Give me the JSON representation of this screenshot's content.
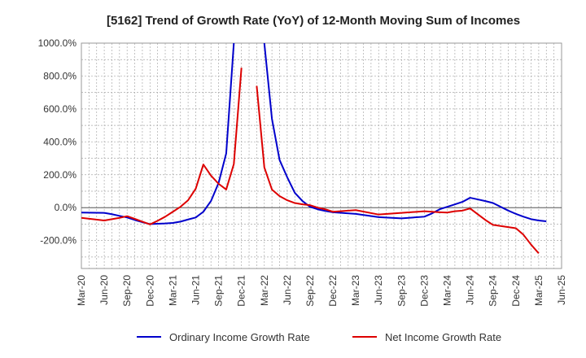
{
  "chart_data": {
    "type": "line",
    "title": "[5162]  Trend of Growth Rate (YoY) of 12-Month Moving Sum of Incomes",
    "xlabel": "",
    "ylabel": "",
    "ylim": [
      -370,
      1000
    ],
    "yticks": [
      1000,
      800,
      600,
      400,
      200,
      0,
      -200
    ],
    "ytick_labels": [
      "1000.0%",
      "800.0%",
      "600.0%",
      "400.0%",
      "200.0%",
      "0.0%",
      "-200.0%"
    ],
    "x_start": "2020-03",
    "x_end": "2025-06",
    "xticks": [
      "2020-03",
      "2020-06",
      "2020-09",
      "2020-12",
      "2021-03",
      "2021-06",
      "2021-09",
      "2021-12",
      "2022-03",
      "2022-06",
      "2022-09",
      "2022-12",
      "2023-03",
      "2023-06",
      "2023-09",
      "2023-12",
      "2024-03",
      "2024-06",
      "2024-09",
      "2024-12",
      "2025-03",
      "2025-06"
    ],
    "xtick_labels": [
      "Mar-20",
      "Jun-20",
      "Sep-20",
      "Dec-20",
      "Mar-21",
      "Jun-21",
      "Sep-21",
      "Dec-21",
      "Mar-22",
      "Jun-22",
      "Sep-22",
      "Dec-22",
      "Mar-23",
      "Jun-23",
      "Sep-23",
      "Dec-23",
      "Mar-24",
      "Jun-24",
      "Sep-24",
      "Dec-24",
      "Mar-25",
      "Jun-25"
    ],
    "grid": true,
    "legend_position": "bottom",
    "series": [
      {
        "name": "Ordinary Income Growth Rate",
        "color": "#0000cc",
        "points": [
          [
            "2020-03",
            -30
          ],
          [
            "2020-06",
            -32
          ],
          [
            "2020-07",
            -40
          ],
          [
            "2020-08",
            -50
          ],
          [
            "2020-09",
            -60
          ],
          [
            "2020-10",
            -75
          ],
          [
            "2020-11",
            -88
          ],
          [
            "2020-12",
            -100
          ],
          [
            "2021-01",
            -98
          ],
          [
            "2021-02",
            -96
          ],
          [
            "2021-03",
            -93
          ],
          [
            "2021-04",
            -85
          ],
          [
            "2021-05",
            -72
          ],
          [
            "2021-06",
            -60
          ],
          [
            "2021-07",
            -25
          ],
          [
            "2021-08",
            40
          ],
          [
            "2021-09",
            150
          ],
          [
            "2021-10",
            330
          ],
          [
            "2021-11",
            1000
          ],
          [
            "2021-12",
            null
          ],
          [
            "2022-01",
            null
          ],
          [
            "2022-02",
            null
          ],
          [
            "2022-03",
            1000
          ],
          [
            "2022-04",
            540
          ],
          [
            "2022-05",
            290
          ],
          [
            "2022-06",
            185
          ],
          [
            "2022-07",
            90
          ],
          [
            "2022-08",
            40
          ],
          [
            "2022-09",
            5
          ],
          [
            "2022-10",
            -10
          ],
          [
            "2022-11",
            -20
          ],
          [
            "2022-12",
            -28
          ],
          [
            "2023-03",
            -38
          ],
          [
            "2023-06",
            -58
          ],
          [
            "2023-09",
            -65
          ],
          [
            "2023-12",
            -55
          ],
          [
            "2024-01",
            -35
          ],
          [
            "2024-02",
            -10
          ],
          [
            "2024-03",
            5
          ],
          [
            "2024-04",
            20
          ],
          [
            "2024-05",
            35
          ],
          [
            "2024-06",
            60
          ],
          [
            "2024-07",
            50
          ],
          [
            "2024-08",
            40
          ],
          [
            "2024-09",
            28
          ],
          [
            "2024-10",
            5
          ],
          [
            "2024-11",
            -18
          ],
          [
            "2024-12",
            -38
          ],
          [
            "2025-01",
            -55
          ],
          [
            "2025-02",
            -70
          ],
          [
            "2025-03",
            -78
          ],
          [
            "2025-04",
            -83
          ]
        ]
      },
      {
        "name": "Net Income Growth Rate",
        "color": "#dd0000",
        "points": [
          [
            "2020-03",
            -62
          ],
          [
            "2020-06",
            -78
          ],
          [
            "2020-07",
            -70
          ],
          [
            "2020-08",
            -62
          ],
          [
            "2020-09",
            -52
          ],
          [
            "2020-10",
            -68
          ],
          [
            "2020-11",
            -85
          ],
          [
            "2020-12",
            -102
          ],
          [
            "2021-01",
            -80
          ],
          [
            "2021-02",
            -55
          ],
          [
            "2021-03",
            -25
          ],
          [
            "2021-04",
            5
          ],
          [
            "2021-05",
            45
          ],
          [
            "2021-06",
            115
          ],
          [
            "2021-07",
            262
          ],
          [
            "2021-08",
            195
          ],
          [
            "2021-09",
            145
          ],
          [
            "2021-10",
            110
          ],
          [
            "2021-11",
            265
          ],
          [
            "2021-12",
            850
          ],
          [
            "2022-01",
            null
          ],
          [
            "2022-02",
            740
          ],
          [
            "2022-03",
            245
          ],
          [
            "2022-04",
            110
          ],
          [
            "2022-05",
            70
          ],
          [
            "2022-06",
            45
          ],
          [
            "2022-07",
            28
          ],
          [
            "2022-08",
            20
          ],
          [
            "2022-09",
            15
          ],
          [
            "2022-10",
            0
          ],
          [
            "2022-11",
            -10
          ],
          [
            "2022-12",
            -25
          ],
          [
            "2023-03",
            -15
          ],
          [
            "2023-06",
            -42
          ],
          [
            "2023-09",
            -32
          ],
          [
            "2023-12",
            -22
          ],
          [
            "2024-01",
            -25
          ],
          [
            "2024-02",
            -28
          ],
          [
            "2024-03",
            -30
          ],
          [
            "2024-04",
            -22
          ],
          [
            "2024-05",
            -18
          ],
          [
            "2024-06",
            -5
          ],
          [
            "2024-07",
            -40
          ],
          [
            "2024-08",
            -75
          ],
          [
            "2024-09",
            -105
          ],
          [
            "2024-12",
            -125
          ],
          [
            "2025-01",
            -165
          ],
          [
            "2025-02",
            -225
          ],
          [
            "2025-03",
            -278
          ]
        ]
      }
    ]
  }
}
